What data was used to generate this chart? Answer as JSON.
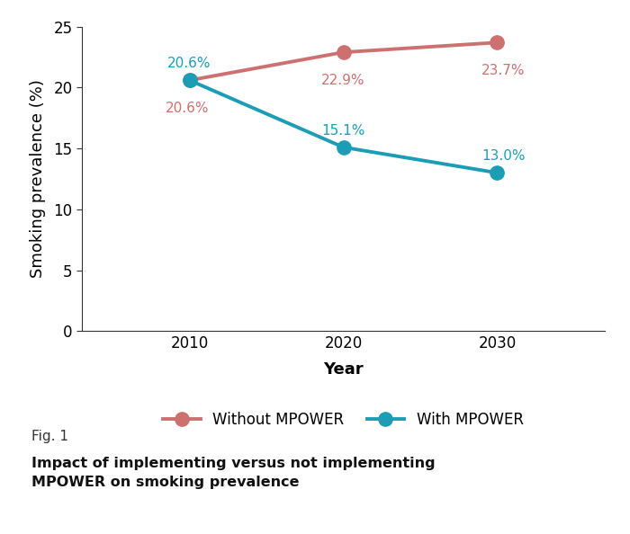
{
  "years": [
    2010,
    2020,
    2030
  ],
  "without_mpower": [
    20.6,
    22.9,
    23.7
  ],
  "with_mpower": [
    20.6,
    15.1,
    13.0
  ],
  "without_color": "#cd7170",
  "with_color": "#1b9db5",
  "without_label": "Without MPOWER",
  "with_label": "With MPOWER",
  "ylabel": "Smoking prevalence (%)",
  "xlabel": "Year",
  "ylim": [
    0,
    25
  ],
  "yticks": [
    0,
    5,
    10,
    15,
    20,
    25
  ],
  "xticks": [
    2010,
    2020,
    2030
  ],
  "fig1_label": "Fig. 1",
  "fig1_title_bold": "Impact of implementing versus not implementing\nMPOWER on smoking prevalence",
  "annotation_without": [
    "20.6%",
    "22.9%",
    "23.7%"
  ],
  "annotation_with": [
    "20.6%",
    "15.1%",
    "13.0%"
  ],
  "linewidth": 2.8,
  "markersize": 11,
  "background_color": "#ffffff",
  "tick_fontsize": 12,
  "label_fontsize": 13,
  "annot_fontsize": 11,
  "legend_fontsize": 12
}
